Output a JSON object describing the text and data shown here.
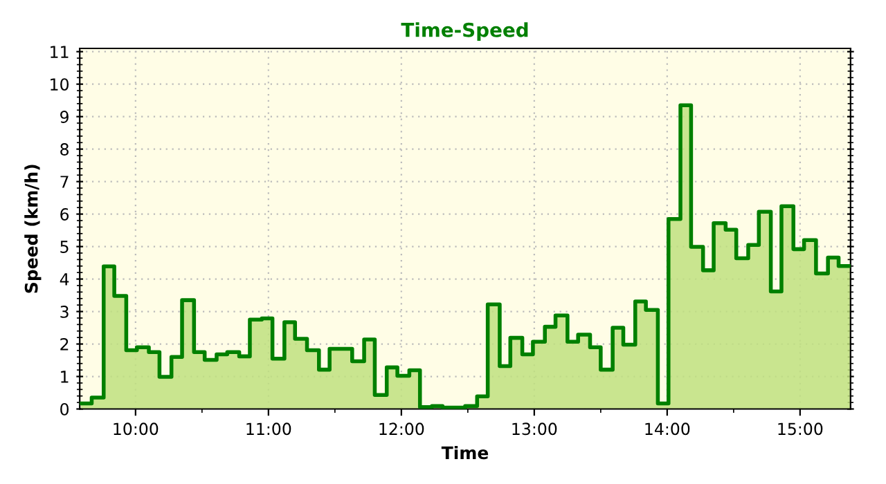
{
  "chart_data": {
    "type": "step",
    "title": "Time-Speed",
    "xlabel": "Time",
    "ylabel": "Speed (km/h)",
    "x": [
      9.59,
      9.67,
      9.76,
      9.84,
      9.93,
      10.01,
      10.1,
      10.18,
      10.27,
      10.35,
      10.44,
      10.52,
      10.61,
      10.69,
      10.78,
      10.86,
      10.95,
      11.03,
      11.12,
      11.2,
      11.29,
      11.38,
      11.46,
      11.55,
      11.63,
      11.72,
      11.8,
      11.89,
      11.97,
      12.06,
      12.14,
      12.23,
      12.31,
      12.4,
      12.48,
      12.57,
      12.65,
      12.74,
      12.82,
      12.91,
      12.99,
      13.08,
      13.16,
      13.25,
      13.33,
      13.42,
      13.5,
      13.59,
      13.67,
      13.76,
      13.84,
      13.93,
      14.01,
      14.1,
      14.18,
      14.27,
      14.35,
      14.44,
      14.52,
      14.61,
      14.69,
      14.78,
      14.86,
      14.95,
      15.03,
      15.12,
      15.21,
      15.29,
      15.38
    ],
    "series": [
      {
        "color": "#008000",
        "values": [
          0.17,
          0.35,
          4.39,
          3.48,
          1.81,
          1.9,
          1.75,
          0.99,
          1.6,
          3.35,
          1.75,
          1.51,
          1.68,
          1.75,
          1.62,
          2.75,
          2.79,
          1.55,
          2.67,
          2.16,
          1.81,
          1.21,
          1.85,
          1.85,
          1.47,
          2.14,
          0.43,
          1.28,
          1.02,
          1.19,
          0.06,
          0.09,
          0.04,
          0.04,
          0.09,
          0.39,
          3.22,
          1.32,
          2.19,
          1.68,
          2.07,
          2.53,
          2.88,
          2.07,
          2.29,
          1.9,
          1.21,
          2.5,
          1.98,
          3.31,
          3.05,
          0.17,
          5.85,
          9.35,
          4.99,
          4.27,
          5.72,
          5.52,
          4.64,
          5.05,
          6.07,
          3.62,
          6.24,
          4.92,
          5.2,
          4.17,
          4.66,
          4.4,
          4.4
        ]
      }
    ],
    "xlim": [
      9.58,
      15.38
    ],
    "ylim": [
      0,
      11.1
    ],
    "xticks": [
      {
        "value": 10,
        "label": "10:00"
      },
      {
        "value": 11,
        "label": "11:00"
      },
      {
        "value": 12,
        "label": "12:00"
      },
      {
        "value": 13,
        "label": "13:00"
      },
      {
        "value": 14,
        "label": "14:00"
      },
      {
        "value": 15,
        "label": "15:00"
      }
    ],
    "yticks": [
      0,
      1,
      2,
      3,
      4,
      5,
      6,
      7,
      8,
      9,
      10,
      11
    ],
    "grid": true,
    "line_style": "solid",
    "marker": "none"
  }
}
